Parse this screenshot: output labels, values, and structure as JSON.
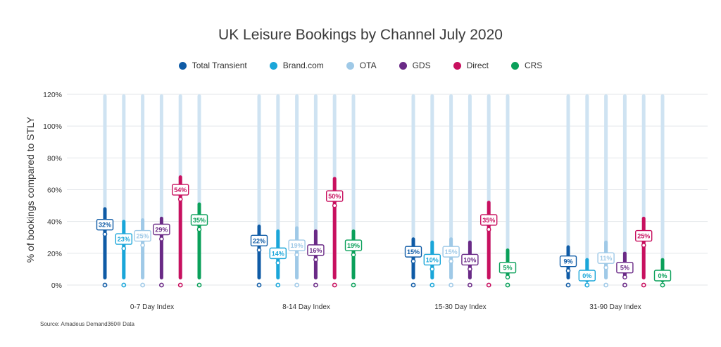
{
  "chart_data": {
    "type": "bar",
    "title": "UK Leisure Bookings by Channel July 2020",
    "ylabel": "% of bookings compared to STLY",
    "xlabel": "",
    "ylim": [
      0,
      120
    ],
    "yticks": [
      "0%",
      "20%",
      "40%",
      "60%",
      "80%",
      "100%",
      "120%"
    ],
    "ytick_values": [
      0,
      20,
      40,
      60,
      80,
      100,
      120
    ],
    "grid": true,
    "legend_position": "top-center",
    "categories": [
      "0-7 Day Index",
      "8-14 Day Index",
      "15-30 Day Index",
      "31-90 Day Index"
    ],
    "series": [
      {
        "name": "Total Transient",
        "color": "#0f5ba6",
        "bar_values": [
          49,
          38,
          30,
          25
        ],
        "values": [
          32,
          22,
          15,
          9
        ],
        "labels": [
          "32%",
          "22%",
          "15%",
          "9%"
        ]
      },
      {
        "name": "Brand.com",
        "color": "#1aa6d9",
        "bar_values": [
          41,
          35,
          28,
          17
        ],
        "values": [
          23,
          14,
          10,
          0
        ],
        "labels": [
          "23%",
          "14%",
          "10%",
          "0%"
        ]
      },
      {
        "name": "OTA",
        "color": "#9fc9e7",
        "bar_values": [
          42,
          37,
          30,
          28
        ],
        "values": [
          25,
          19,
          15,
          11
        ],
        "labels": [
          "25%",
          "19%",
          "15%",
          "11%"
        ]
      },
      {
        "name": "GDS",
        "color": "#6a2a86",
        "bar_values": [
          43,
          35,
          28,
          21
        ],
        "values": [
          29,
          16,
          10,
          5
        ],
        "labels": [
          "29%",
          "16%",
          "10%",
          "5%"
        ]
      },
      {
        "name": "Direct",
        "color": "#c8105f",
        "bar_values": [
          69,
          68,
          53,
          43
        ],
        "values": [
          54,
          50,
          35,
          25
        ],
        "labels": [
          "54%",
          "50%",
          "35%",
          "25%"
        ]
      },
      {
        "name": "CRS",
        "color": "#0aa05a",
        "bar_values": [
          52,
          35,
          23,
          17
        ],
        "values": [
          35,
          19,
          5,
          0
        ],
        "labels": [
          "35%",
          "19%",
          "5%",
          "0%"
        ]
      }
    ],
    "track_color": "#cfe3f2",
    "source": "Source: Amadeus Demand360® Data"
  }
}
